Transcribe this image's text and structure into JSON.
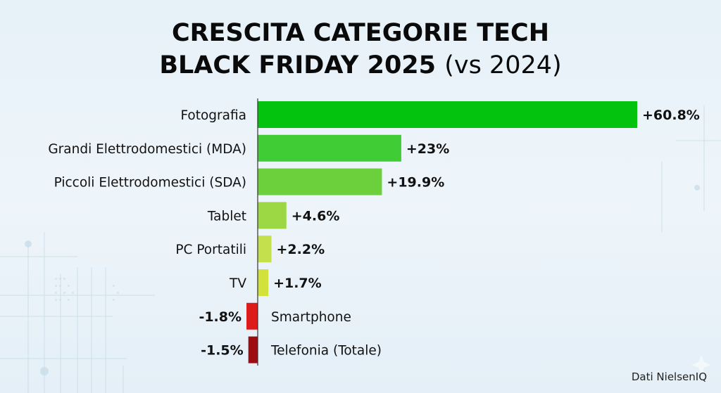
{
  "title": {
    "line1": "CRESCITA CATEGORIE TECH",
    "line2_bold": "BLACK FRIDAY 2025",
    "line2_light": "(vs 2024)"
  },
  "source": "Dati NielsenIQ",
  "chart_data": {
    "type": "bar",
    "orientation": "horizontal",
    "title": "CRESCITA CATEGORIE TECH BLACK FRIDAY 2025 (vs 2024)",
    "xlabel": "",
    "ylabel": "",
    "unit": "%",
    "grid": false,
    "categories": [
      "Fotografia",
      "Grandi Elettrodomestici (MDA)",
      "Piccoli Elettrodomestici (SDA)",
      "Tablet",
      "PC Portatili",
      "TV",
      "Smartphone",
      "Telefonia (Totale)"
    ],
    "values": [
      60.8,
      23,
      19.9,
      4.6,
      2.2,
      1.7,
      -1.8,
      -1.5
    ],
    "labels": [
      "+60.8%",
      "+23%",
      "+19.9%",
      "+4.6%",
      "+2.2%",
      "+1.7%",
      "-1.8%",
      "-1.5%"
    ],
    "colors": [
      "#03c30f",
      "#3fcc35",
      "#6ccf3c",
      "#9cd844",
      "#c4e04c",
      "#d2e23a",
      "#dd1b1b",
      "#9c0c10"
    ]
  }
}
